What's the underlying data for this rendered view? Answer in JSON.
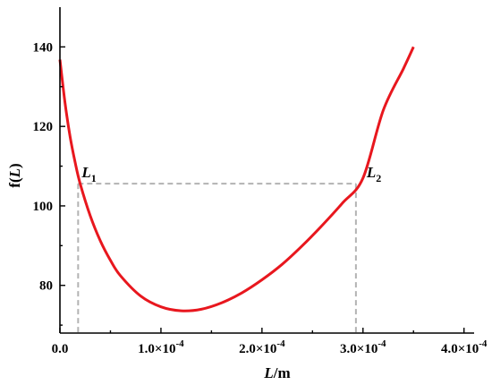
{
  "chart_data": {
    "type": "line",
    "xlabel_var": "L",
    "xlabel_unit": "/m",
    "ylabel_prefix": "f(",
    "ylabel_var": "L",
    "ylabel_suffix": ")",
    "xlim": [
      0,
      0.00041
    ],
    "ylim": [
      68,
      150
    ],
    "x_ticks": [
      {
        "value": 0,
        "label": "0.0"
      },
      {
        "value": 0.0001,
        "label": "1.0×10"
      },
      {
        "value": 0.0002,
        "label": "2.0×10"
      },
      {
        "value": 0.0003,
        "label": "3.0×10"
      },
      {
        "value": 0.0004,
        "label": "4.0×10"
      }
    ],
    "x_tick_exponent": "-4",
    "y_ticks": [
      80,
      100,
      120,
      140
    ],
    "series": [
      {
        "color": "#e8171e",
        "x": [
          0,
          5e-06,
          1e-05,
          1.5e-05,
          2e-05,
          3e-05,
          4e-05,
          5e-05,
          6e-05,
          8e-05,
          0.0001,
          0.00012,
          0.00014,
          0.00016,
          0.00018,
          0.0002,
          0.00022,
          0.00024,
          0.00026,
          0.00028,
          0.0003,
          0.00032,
          0.00034,
          0.00035
        ],
        "y": [
          136.8,
          126,
          117.5,
          111,
          105.6,
          97.5,
          91.2,
          86.3,
          82.4,
          77.3,
          74.6,
          73.6,
          74.0,
          75.6,
          78.1,
          81.4,
          85.3,
          90.0,
          95.2,
          100.8,
          107.0,
          124.0,
          134.5,
          140.0
        ]
      }
    ],
    "reference_level": 105.6,
    "annotations": [
      {
        "letter": "L",
        "sub": "1",
        "x": 1.8e-05,
        "y": 105.6
      },
      {
        "letter": "L",
        "sub": "2",
        "x": 0.000293,
        "y": 105.6
      }
    ]
  }
}
